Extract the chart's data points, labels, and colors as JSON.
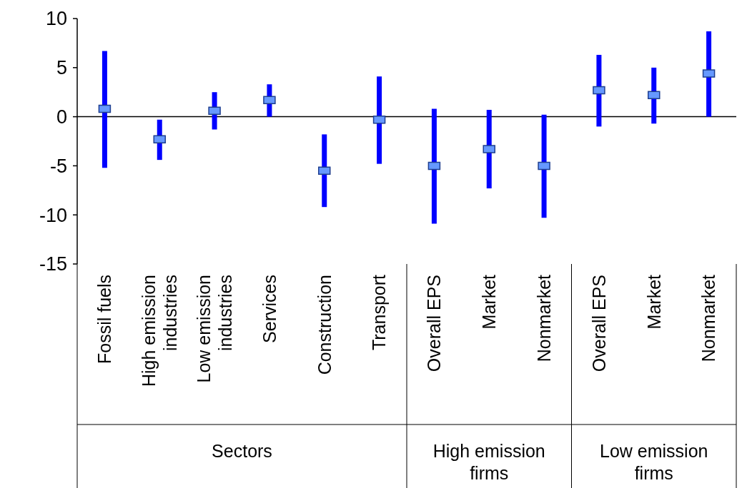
{
  "chart_data": {
    "type": "scatter",
    "categories": [
      "Fossil fuels",
      "High emission industries",
      "Low emission industries",
      "Services",
      "Construction",
      "Transport",
      "Overall EPS",
      "Market",
      "Nonmarket",
      "Overall EPS",
      "Market",
      "Nonmarket"
    ],
    "series": [
      {
        "color": "#6699ff",
        "values": [
          0.8,
          -2.3,
          0.6,
          1.7,
          -5.5,
          -0.3,
          -5.0,
          -3.3,
          -5.0,
          2.7,
          2.2,
          4.4
        ],
        "errors": [
          [
            -5.2,
            6.7
          ],
          [
            -4.4,
            -0.3
          ],
          [
            -1.3,
            2.5
          ],
          [
            0,
            3.3
          ],
          [
            -9.2,
            -1.8
          ],
          [
            -4.8,
            4.1
          ],
          [
            -10.9,
            0.8
          ],
          [
            -7.3,
            0.7
          ],
          [
            -10.3,
            0.2
          ],
          [
            -1.0,
            6.3
          ],
          [
            -0.7,
            5.0
          ],
          [
            0,
            8.7
          ]
        ]
      }
    ],
    "ylim": [
      -15,
      10
    ],
    "yticks": [
      -15,
      -10,
      -5,
      0,
      5,
      10
    ],
    "annotations": [
      "Sectors",
      "High emission firms",
      "Low emission firms"
    ],
    "marker": "square",
    "legend": false
  }
}
